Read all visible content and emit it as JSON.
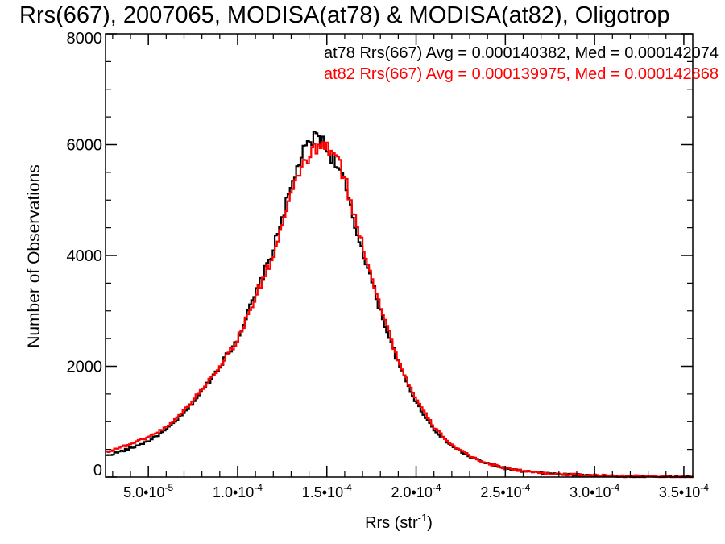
{
  "chart_data": {
    "type": "line",
    "title": "Rrs(667), 2007065, MODISA(at78) & MODISA(at82), Oligotrop",
    "xlabel": "Rrs (str",
    "xlabel_superscript": "-1",
    "xlabel_close": ")",
    "ylabel": "Number of Observations",
    "xlim": [
      2.6e-05,
      0.000355
    ],
    "ylim": [
      0,
      8000
    ],
    "x_ticks": [
      {
        "value": 5e-05,
        "mantissa": "5.0•10",
        "exponent": "-5"
      },
      {
        "value": 0.0001,
        "mantissa": "1.0•10",
        "exponent": "-4"
      },
      {
        "value": 0.00015,
        "mantissa": "1.5•10",
        "exponent": "-4"
      },
      {
        "value": 0.0002,
        "mantissa": "2.0•10",
        "exponent": "-4"
      },
      {
        "value": 0.00025,
        "mantissa": "2.5•10",
        "exponent": "-4"
      },
      {
        "value": 0.0003,
        "mantissa": "3.0•10",
        "exponent": "-4"
      },
      {
        "value": 0.00035,
        "mantissa": "3.5•10",
        "exponent": "-4"
      }
    ],
    "y_ticks": [
      {
        "value": 0,
        "label": "0"
      },
      {
        "value": 2000,
        "label": "2000"
      },
      {
        "value": 4000,
        "label": "4000"
      },
      {
        "value": 6000,
        "label": "6000"
      },
      {
        "value": 8000,
        "label": "8000"
      }
    ],
    "grid": false,
    "legend_placement": "top-right",
    "annotations": [
      {
        "text": "at78 Rrs(667) Avg = 0.000140382, Med = 0.000142074",
        "color": "#000000"
      },
      {
        "text": "at82 Rrs(667) Avg = 0.000139975, Med = 0.000142868",
        "color": "#ff0000"
      }
    ],
    "series": [
      {
        "color": "#000000",
        "x": [
          2.6e-05,
          4e-05,
          5e-05,
          6e-05,
          7e-05,
          8e-05,
          9e-05,
          0.0001,
          0.00011,
          0.00012,
          0.000125,
          0.00013,
          0.000135,
          0.00014,
          0.000145,
          0.00015,
          0.000155,
          0.00016,
          0.000165,
          0.00017,
          0.00018,
          0.00019,
          0.0002,
          0.00021,
          0.00022,
          0.00023,
          0.00024,
          0.00025,
          0.00026,
          0.00027,
          0.00028,
          0.00029,
          0.0003,
          0.00031,
          0.00032,
          0.00033,
          0.00034,
          0.00035
        ],
        "y": [
          380,
          520,
          650,
          850,
          1150,
          1550,
          2000,
          2500,
          3300,
          4100,
          4700,
          5200,
          5750,
          6000,
          6200,
          5900,
          5700,
          5300,
          4600,
          4100,
          3000,
          2050,
          1350,
          860,
          560,
          370,
          240,
          160,
          105,
          72,
          52,
          38,
          28,
          20,
          14,
          10,
          7,
          5
        ]
      },
      {
        "color": "#ff0000",
        "x": [
          2.6e-05,
          4e-05,
          5e-05,
          6e-05,
          7e-05,
          8e-05,
          9e-05,
          0.0001,
          0.00011,
          0.00012,
          0.000125,
          0.00013,
          0.000135,
          0.00014,
          0.000145,
          0.00015,
          0.000155,
          0.00016,
          0.000165,
          0.00017,
          0.00018,
          0.00019,
          0.0002,
          0.00021,
          0.00022,
          0.00023,
          0.00024,
          0.00025,
          0.00026,
          0.00027,
          0.00028,
          0.00029,
          0.0003,
          0.00031,
          0.00032,
          0.00033,
          0.00034,
          0.00035
        ],
        "y": [
          450,
          600,
          720,
          900,
          1200,
          1580,
          2000,
          2480,
          3250,
          4000,
          4550,
          5050,
          5550,
          5800,
          5950,
          5950,
          5800,
          5400,
          4750,
          4200,
          3100,
          2100,
          1400,
          900,
          580,
          380,
          245,
          165,
          110,
          75,
          54,
          39,
          28,
          20,
          14,
          10,
          7,
          5
        ]
      }
    ]
  }
}
